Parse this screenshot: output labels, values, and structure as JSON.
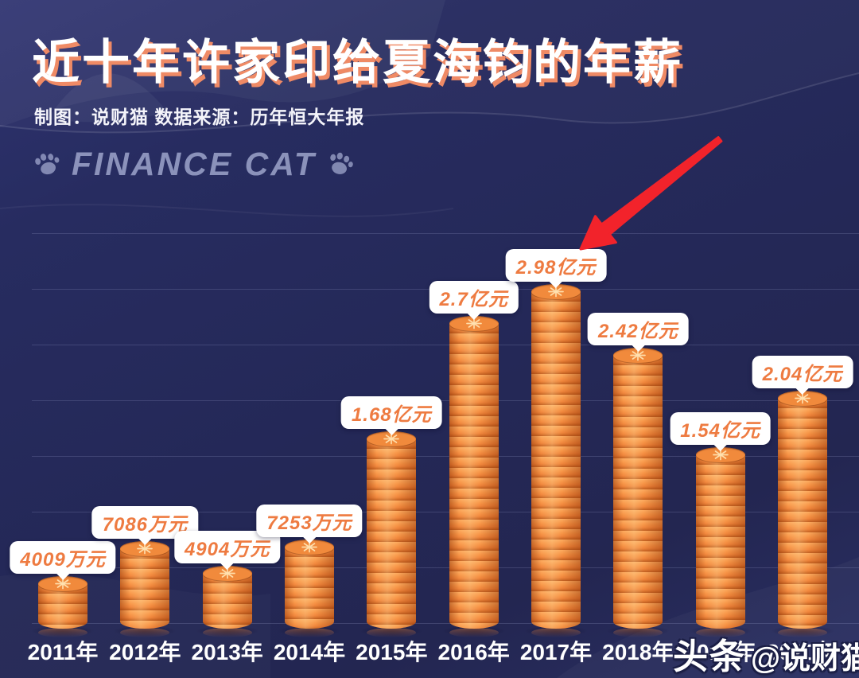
{
  "header": {
    "title": "近十年许家印给夏海钧的年薪",
    "subtitle": "制图：说财猫  数据来源：历年恒大年报"
  },
  "watermarks": {
    "finance_cat": "FINANCE CAT",
    "corner_brand": "头条",
    "corner_handle": "@说财猫"
  },
  "chart_data": {
    "type": "bar",
    "title": "近十年许家印给夏海钧的年薪",
    "categories": [
      "2011年",
      "2012年",
      "2013年",
      "2014年",
      "2015年",
      "2016年",
      "2017年",
      "2018年",
      "2019年",
      "2020年"
    ],
    "values_yi_yuan": [
      0.4009,
      0.7086,
      0.4904,
      0.7253,
      1.68,
      2.7,
      2.98,
      2.42,
      1.54,
      2.04
    ],
    "value_labels": [
      "4009万元",
      "7086万元",
      "4904万元",
      "7253万元",
      "1.68亿元",
      "2.7亿元",
      "2.98亿元",
      "2.42亿元",
      "1.54亿元",
      "2.04亿元"
    ],
    "unit": "亿元",
    "ylim_yi_yuan": [
      0,
      3.5
    ],
    "grid": true,
    "gridline_interval_yi_yuan": 0.5,
    "legend_position": "none",
    "bar_style": "stacked-orange-coins",
    "bar_color": "#f28a3e",
    "value_label_color": "#ee7b41",
    "background_color": "#242857",
    "annotation": {
      "type": "arrow",
      "color": "#f2232b",
      "points_to_category": "2017年",
      "points_to_label": "2.98亿元"
    }
  }
}
